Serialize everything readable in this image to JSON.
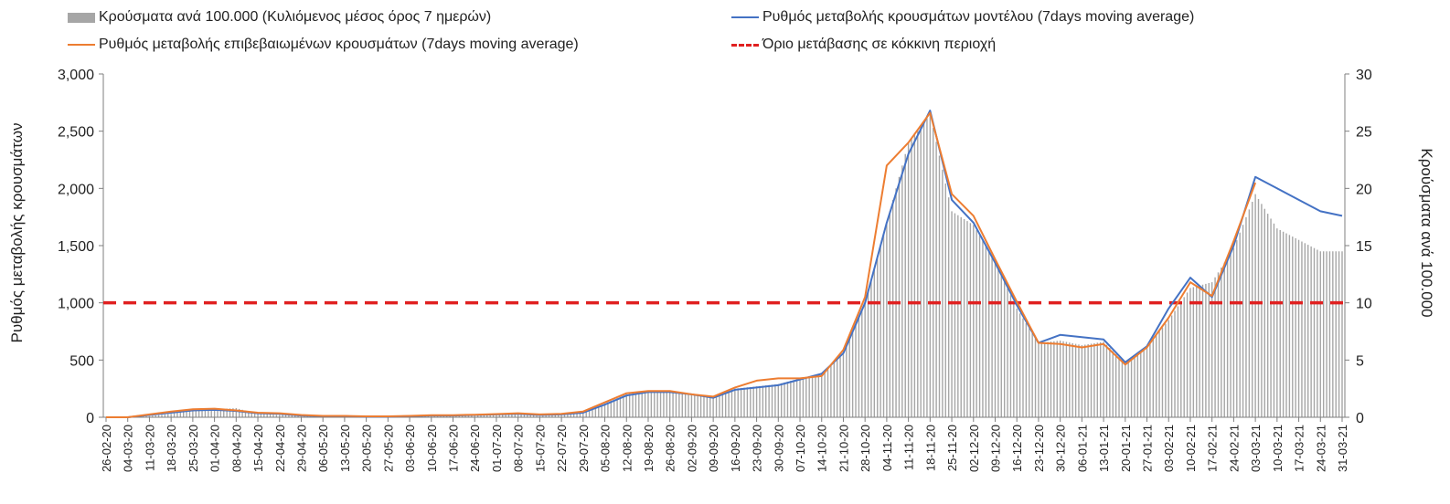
{
  "chart_data": {
    "type": "bar+line",
    "legend": {
      "bars": "Κρούσματα ανά 100.000 (Κυλιόμενος μέσος όρος 7 ημερών)",
      "model_line": "Ρυθμός μεταβολής κρουσμάτων μοντέλου (7days moving average)",
      "confirmed_line": "Ρυθμός μεταβολής επιβεβαιωμένων κρουσμάτων (7days moving average)",
      "threshold": "Όριο μετάβασης σε κόκκινη περιοχή"
    },
    "ylabel_left": "Ρυθμός μεταβολής κρουσμάτων",
    "ylabel_right": "Κρούσματα ανά 100.000",
    "ylim_left": [
      0,
      3000
    ],
    "ylim_right": [
      0,
      30
    ],
    "yticks_left": [
      "0",
      "500",
      "1,000",
      "1,500",
      "2,000",
      "2,500",
      "3,000"
    ],
    "yticks_right": [
      "0",
      "5",
      "10",
      "15",
      "20",
      "25",
      "30"
    ],
    "x_tick_labels": [
      "26-02-20",
      "04-03-20",
      "11-03-20",
      "18-03-20",
      "25-03-20",
      "01-04-20",
      "08-04-20",
      "15-04-20",
      "22-04-20",
      "29-04-20",
      "06-05-20",
      "13-05-20",
      "20-05-20",
      "27-05-20",
      "03-06-20",
      "10-06-20",
      "17-06-20",
      "24-06-20",
      "01-07-20",
      "08-07-20",
      "15-07-20",
      "22-07-20",
      "29-07-20",
      "05-08-20",
      "12-08-20",
      "19-08-20",
      "26-08-20",
      "02-09-20",
      "09-09-20",
      "16-09-20",
      "23-09-20",
      "30-09-20",
      "07-10-20",
      "14-10-20",
      "21-10-20",
      "28-10-20",
      "04-11-20",
      "11-11-20",
      "18-11-20",
      "25-11-20",
      "02-12-20",
      "09-12-20",
      "16-12-20",
      "23-12-20",
      "30-12-20",
      "06-01-21",
      "13-01-21",
      "20-01-21",
      "27-01-21",
      "03-02-21",
      "10-02-21",
      "17-02-21",
      "24-02-21",
      "03-03-21",
      "10-03-21",
      "17-03-21",
      "24-03-21",
      "31-03-21"
    ],
    "threshold_value": 1000,
    "colors": {
      "bars": "#a6a6a6",
      "model_line": "#4472c4",
      "confirmed_line": "#ed7d31",
      "threshold": "#e02020"
    },
    "series": {
      "bars_per_100k": [
        0,
        0,
        0.1,
        0.3,
        0.7,
        0.7,
        0.8,
        0.3,
        0.2,
        0.2,
        0.1,
        0.1,
        0,
        0,
        0.1,
        0.1,
        0.1,
        0.2,
        0.2,
        0.3,
        0.1,
        0.2,
        0.4,
        1.2,
        2,
        2.2,
        2.3,
        2,
        1.8,
        2.5,
        2.7,
        2.9,
        3.4,
        3.8,
        5.5,
        10,
        17,
        24,
        26.5,
        18,
        16.8,
        13.6,
        9.5,
        6.5,
        6.7,
        6.3,
        6.6,
        4.7,
        6.2,
        8.5,
        11.3,
        11.8,
        14.8,
        19.5,
        16.5,
        15.5,
        14.5,
        14.5
      ],
      "model_rate": [
        0,
        0,
        20,
        40,
        60,
        65,
        55,
        35,
        30,
        15,
        10,
        10,
        5,
        5,
        10,
        15,
        15,
        20,
        25,
        30,
        20,
        25,
        40,
        110,
        190,
        220,
        220,
        200,
        170,
        240,
        260,
        280,
        330,
        380,
        560,
        1000,
        1700,
        2300,
        2680,
        1900,
        1700,
        1350,
        980,
        650,
        720,
        700,
        680,
        480,
        620,
        950,
        1220,
        1050,
        1500,
        2100,
        2000,
        1900,
        1800,
        1760
      ],
      "confirmed_rate": [
        0,
        0,
        25,
        50,
        70,
        75,
        60,
        40,
        35,
        20,
        12,
        12,
        8,
        8,
        12,
        18,
        18,
        22,
        28,
        35,
        25,
        30,
        50,
        130,
        210,
        230,
        230,
        200,
        180,
        260,
        320,
        340,
        340,
        360,
        590,
        1050,
        2200,
        2400,
        2660,
        1950,
        1760,
        1380,
        1010,
        650,
        640,
        610,
        640,
        460,
        610,
        870,
        1180,
        1060,
        1540,
        2050,
        null,
        null,
        null,
        null
      ]
    }
  }
}
